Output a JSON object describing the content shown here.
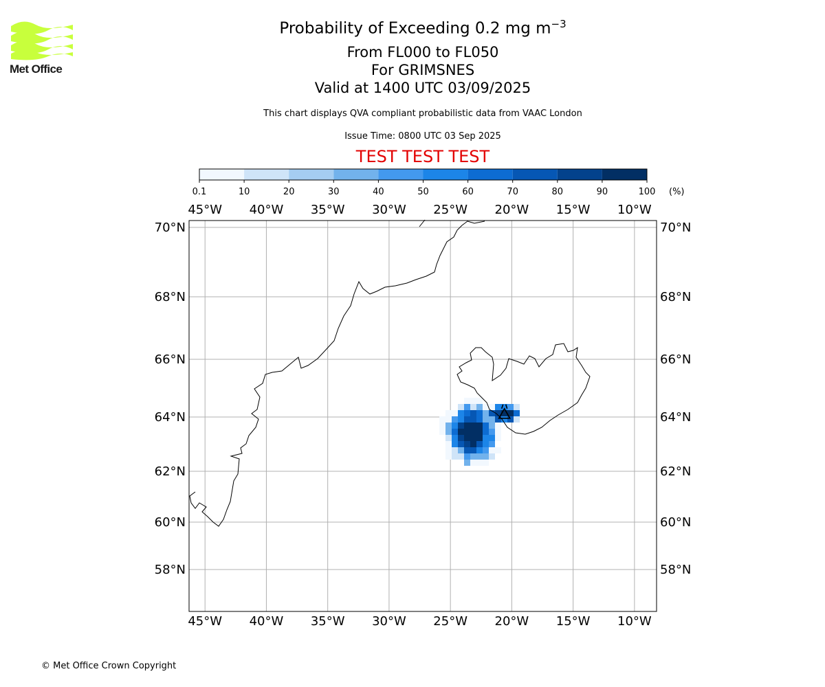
{
  "logo": {
    "text": "Met Office",
    "color": "#c8ff3c"
  },
  "titles": {
    "main": "Probability of Exceeding 0.2 mg m",
    "main_sup": "−3",
    "levels": "From FL000 to FL050",
    "volcano": "For GRIMSNES",
    "valid": "Valid at 1400 UTC 03/09/2025",
    "source": "This chart displays QVA compliant probabilistic data from VAAC London",
    "issue": "Issue Time: 0800 UTC 03 Sep 2025",
    "test": "TEST TEST TEST"
  },
  "colorbar": {
    "ticks": [
      "0.1",
      "10",
      "20",
      "30",
      "40",
      "50",
      "60",
      "70",
      "80",
      "90",
      "100"
    ],
    "unit": "(%)",
    "colors": [
      "#f2f8fe",
      "#cfe4f8",
      "#a5cdf2",
      "#72b2ec",
      "#4399ee",
      "#1c85e8",
      "#0d6cd2",
      "#0657b4",
      "#03428c",
      "#022f64"
    ]
  },
  "map": {
    "lon_range": [
      -46.3,
      -8.2
    ],
    "lon_ticks": [
      -45,
      -40,
      -35,
      -30,
      -25,
      -20,
      -15,
      -10
    ],
    "lon_labels": [
      "45°W",
      "40°W",
      "35°W",
      "30°W",
      "25°W",
      "20°W",
      "15°W",
      "10°W"
    ],
    "lat_ticks": [
      58,
      60,
      62,
      64,
      66,
      68,
      70
    ],
    "lat_labels": [
      "58°N",
      "60°N",
      "62°N",
      "64°N",
      "66°N",
      "68°N",
      "70°N"
    ],
    "volcano": {
      "name": "GRIMSNES",
      "lon": -20.6,
      "lat": 64.1
    }
  },
  "copyright": "© Met Office Crown Copyright"
}
